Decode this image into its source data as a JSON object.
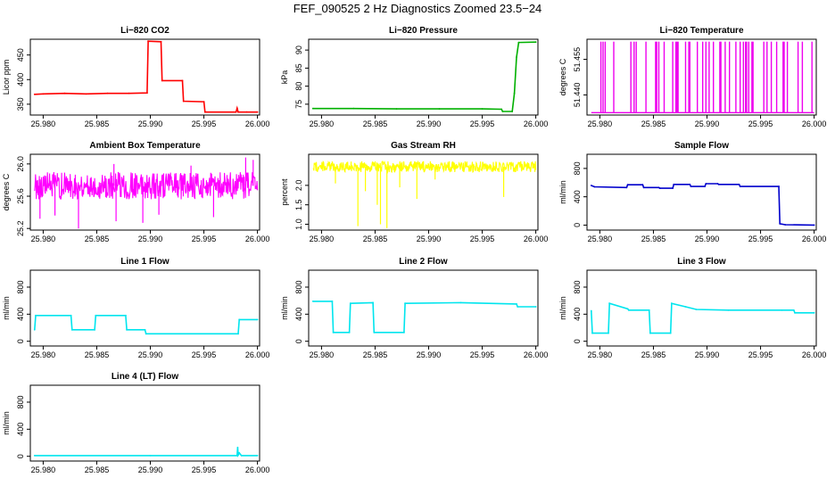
{
  "main_title": "FEF_090525  2 Hz Diagnostics Zoomed 23.5−24",
  "chart_data": [
    {
      "type": "line",
      "title": "Li−820 CO2",
      "ylabel": "Licor ppm",
      "color": "#ff0000",
      "xlim": [
        25.9788,
        26.0002
      ],
      "ylim": [
        328,
        482
      ],
      "x_ticks": [
        25.98,
        25.985,
        25.99,
        25.995,
        26.0
      ],
      "x_tick_labels": [
        "25.980",
        "25.985",
        "25.990",
        "25.995",
        "26.000"
      ],
      "y_ticks": [
        350,
        400,
        450
      ],
      "y_tick_labels": [
        "350",
        "400",
        "450"
      ],
      "series": [
        {
          "x": [
            25.9792,
            25.98,
            25.982,
            25.984,
            25.986,
            25.988,
            25.9897,
            25.9898,
            25.991,
            25.9911,
            25.993,
            25.9931,
            25.995,
            25.9951,
            25.998,
            25.9981,
            25.9982,
            25.999,
            26.0
          ],
          "y": [
            370,
            371,
            372,
            371,
            372,
            372,
            373,
            478,
            477,
            398,
            398,
            356,
            355,
            334,
            334,
            342,
            334,
            334,
            334
          ]
        }
      ]
    },
    {
      "type": "line",
      "title": "Li−820 Pressure",
      "ylabel": "kPa",
      "color": "#00b000",
      "xlim": [
        25.9788,
        26.0002
      ],
      "ylim": [
        72,
        93
      ],
      "x_ticks": [
        25.98,
        25.985,
        25.99,
        25.995,
        26.0
      ],
      "x_tick_labels": [
        "25.980",
        "25.985",
        "25.990",
        "25.995",
        "26.000"
      ],
      "y_ticks": [
        75,
        80,
        85,
        90
      ],
      "y_tick_labels": [
        "75",
        "80",
        "85",
        "90"
      ],
      "series": [
        {
          "x": [
            25.9792,
            25.983,
            25.987,
            25.991,
            25.995,
            25.9968,
            25.9969,
            25.9978,
            25.998,
            25.9982,
            25.9984,
            26.0
          ],
          "y": [
            73.8,
            73.8,
            73.7,
            73.7,
            73.7,
            73.6,
            73.0,
            73.0,
            78,
            88,
            92.1,
            92.2
          ]
        }
      ]
    },
    {
      "type": "line",
      "title": "Li−820 Temperature",
      "ylabel": "degrees C",
      "color": "#ee00ee",
      "xlim": [
        25.9788,
        26.0002
      ],
      "ylim": [
        51.4315,
        51.4635
      ],
      "x_ticks": [
        25.98,
        25.985,
        25.99,
        25.995,
        26.0
      ],
      "x_tick_labels": [
        "25.980",
        "25.985",
        "25.990",
        "25.995",
        "26.000"
      ],
      "y_ticks": [
        51.44,
        51.455
      ],
      "y_tick_labels": [
        "51.440",
        "51.455"
      ],
      "baseline": 51.4325,
      "spike_top": 51.4625,
      "spike_x": [
        25.9801,
        25.9803,
        25.9805,
        25.9813,
        25.9829,
        25.9832,
        25.9834,
        25.9843,
        25.9852,
        25.9853,
        25.9855,
        25.986,
        25.9868,
        25.9871,
        25.9872,
        25.9873,
        25.988,
        25.9883,
        25.9884,
        25.9891,
        25.9896,
        25.9899,
        25.9902,
        25.9906,
        25.9912,
        25.9913,
        25.9917,
        25.9921,
        25.9927,
        25.9931,
        25.9934,
        25.9936,
        25.9937,
        25.9939,
        25.9942,
        25.9943,
        25.9953,
        25.9956,
        25.996,
        25.9965,
        25.9971,
        25.9972,
        25.9975,
        25.9985,
        25.9989,
        25.9998
      ]
    },
    {
      "type": "line",
      "title": "Ambient Box Temperature",
      "ylabel": "degrees C",
      "color": "#ff00ff",
      "xlim": [
        25.9788,
        26.0002
      ],
      "ylim": [
        25.18,
        26.12
      ],
      "x_ticks": [
        25.98,
        25.985,
        25.99,
        25.995,
        26.0
      ],
      "x_tick_labels": [
        "25.980",
        "25.985",
        "25.990",
        "25.995",
        "26.000"
      ],
      "y_ticks": [
        25.2,
        25.6,
        26.0
      ],
      "y_tick_labels": [
        "25.2",
        "25.6",
        "26.0"
      ],
      "band_center": 25.73,
      "band_halfwidth": 0.17,
      "spikes": [
        {
          "x": 25.9797,
          "y": 25.32
        },
        {
          "x": 25.9811,
          "y": 25.36
        },
        {
          "x": 25.9833,
          "y": 25.2
        },
        {
          "x": 25.9868,
          "y": 25.29
        },
        {
          "x": 25.9893,
          "y": 25.27
        },
        {
          "x": 25.9908,
          "y": 25.37
        },
        {
          "x": 25.9959,
          "y": 25.34
        },
        {
          "x": 25.9989,
          "y": 26.08
        },
        {
          "x": 25.9996,
          "y": 26.05
        },
        {
          "x": 25.9866,
          "y": 26.0
        },
        {
          "x": 25.9938,
          "y": 25.98
        }
      ]
    },
    {
      "type": "line",
      "title": "Gas Stream RH",
      "ylabel": "percent",
      "color": "#ffff00",
      "xlim": [
        25.9788,
        26.0002
      ],
      "ylim": [
        0.85,
        2.8
      ],
      "x_ticks": [
        25.98,
        25.985,
        25.99,
        25.995,
        26.0
      ],
      "x_tick_labels": [
        "25.980",
        "25.985",
        "25.990",
        "25.995",
        "26.000"
      ],
      "y_ticks": [
        1.0,
        1.5,
        2.0
      ],
      "y_tick_labels": [
        "1.0",
        "1.5",
        "2.0"
      ],
      "band_center": 2.48,
      "band_halfwidth": 0.14,
      "spikes": [
        {
          "x": 25.9813,
          "y": 2.05
        },
        {
          "x": 25.9834,
          "y": 0.95
        },
        {
          "x": 25.9841,
          "y": 1.85
        },
        {
          "x": 25.9852,
          "y": 1.5
        },
        {
          "x": 25.9855,
          "y": 1.0
        },
        {
          "x": 25.9861,
          "y": 0.9
        },
        {
          "x": 25.9873,
          "y": 1.95
        },
        {
          "x": 25.9889,
          "y": 1.65
        },
        {
          "x": 25.9906,
          "y": 2.15
        },
        {
          "x": 25.997,
          "y": 1.7
        }
      ]
    },
    {
      "type": "line",
      "title": "Sample Flow",
      "ylabel": "ml/min",
      "color": "#0000cc",
      "xlim": [
        25.9788,
        26.0002
      ],
      "ylim": [
        -70,
        1000
      ],
      "x_ticks": [
        25.98,
        25.985,
        25.99,
        25.995,
        26.0
      ],
      "x_tick_labels": [
        "25.980",
        "25.985",
        "25.990",
        "25.995",
        "26.000"
      ],
      "y_ticks": [
        0,
        400,
        800
      ],
      "y_tick_labels": [
        "0",
        "400",
        "800"
      ],
      "series": [
        {
          "x": [
            25.9792,
            25.9795,
            25.9825,
            25.9826,
            25.984,
            25.9841,
            25.9855,
            25.9856,
            25.9868,
            25.9869,
            25.9884,
            25.9885,
            25.9898,
            25.9899,
            25.991,
            25.9911,
            25.993,
            25.9931,
            25.9967,
            25.9968,
            25.9973,
            26.0
          ],
          "y": [
            560,
            540,
            530,
            570,
            570,
            530,
            530,
            520,
            520,
            575,
            575,
            545,
            545,
            585,
            585,
            575,
            575,
            545,
            545,
            20,
            5,
            0
          ]
        }
      ]
    },
    {
      "type": "line",
      "title": "Line 1 Flow",
      "ylabel": "ml/min",
      "color": "#00e5ee",
      "xlim": [
        25.9788,
        26.0002
      ],
      "ylim": [
        -70,
        1050
      ],
      "x_ticks": [
        25.98,
        25.985,
        25.99,
        25.995,
        26.0
      ],
      "x_tick_labels": [
        "25.980",
        "25.985",
        "25.990",
        "25.995",
        "26.000"
      ],
      "y_ticks": [
        0,
        400,
        800
      ],
      "y_tick_labels": [
        "0",
        "400",
        "800"
      ],
      "series": [
        {
          "x": [
            25.9792,
            25.9793,
            25.9826,
            25.9827,
            25.9848,
            25.9849,
            25.9877,
            25.9878,
            25.9895,
            25.9896,
            25.9982,
            25.9983,
            26.0
          ],
          "y": [
            170,
            380,
            380,
            170,
            170,
            380,
            380,
            170,
            170,
            110,
            110,
            320,
            320
          ]
        }
      ]
    },
    {
      "type": "line",
      "title": "Line 2 Flow",
      "ylabel": "ml/min",
      "color": "#00e5ee",
      "xlim": [
        25.9788,
        26.0002
      ],
      "ylim": [
        -70,
        1050
      ],
      "x_ticks": [
        25.98,
        25.985,
        25.99,
        25.995,
        26.0
      ],
      "x_tick_labels": [
        "25.980",
        "25.985",
        "25.990",
        "25.995",
        "26.000"
      ],
      "y_ticks": [
        0,
        400,
        800
      ],
      "y_tick_labels": [
        "0",
        "400",
        "800"
      ],
      "series": [
        {
          "x": [
            25.9792,
            25.981,
            25.9811,
            25.9826,
            25.9827,
            25.9848,
            25.9849,
            25.9877,
            25.9878,
            25.993,
            25.9982,
            25.9983,
            26.0
          ],
          "y": [
            590,
            590,
            130,
            130,
            560,
            570,
            130,
            130,
            560,
            570,
            550,
            510,
            510
          ]
        }
      ]
    },
    {
      "type": "line",
      "title": "Line 3 Flow",
      "ylabel": "ml/min",
      "color": "#00e5ee",
      "xlim": [
        25.9788,
        26.0002
      ],
      "ylim": [
        -70,
        1050
      ],
      "x_ticks": [
        25.98,
        25.985,
        25.99,
        25.995,
        26.0
      ],
      "x_tick_labels": [
        "25.980",
        "25.985",
        "25.990",
        "25.995",
        "26.000"
      ],
      "y_ticks": [
        0,
        400,
        800
      ],
      "y_tick_labels": [
        "0",
        "400",
        "800"
      ],
      "series": [
        {
          "x": [
            25.9792,
            25.9793,
            25.9808,
            25.9809,
            25.9826,
            25.9827,
            25.9846,
            25.9847,
            25.9866,
            25.9867,
            25.988,
            25.989,
            25.992,
            25.997,
            25.9981,
            25.9982,
            26.0
          ],
          "y": [
            450,
            120,
            120,
            560,
            480,
            460,
            460,
            120,
            120,
            560,
            510,
            470,
            460,
            460,
            460,
            420,
            420
          ]
        }
      ]
    },
    {
      "type": "line",
      "title": "Line 4 (LT) Flow",
      "ylabel": "ml/min",
      "color": "#00e5ee",
      "xlim": [
        25.9788,
        26.0002
      ],
      "ylim": [
        -70,
        1050
      ],
      "x_ticks": [
        25.98,
        25.985,
        25.99,
        25.995,
        26.0
      ],
      "x_tick_labels": [
        "25.980",
        "25.985",
        "25.990",
        "25.995",
        "26.000"
      ],
      "y_ticks": [
        0,
        400,
        800
      ],
      "y_tick_labels": [
        "0",
        "400",
        "800"
      ],
      "series": [
        {
          "x": [
            25.9792,
            25.99,
            25.9981,
            25.99815,
            25.9982,
            25.9983,
            25.9985,
            26.0
          ],
          "y": [
            10,
            10,
            10,
            130,
            20,
            50,
            10,
            10
          ]
        }
      ]
    }
  ]
}
